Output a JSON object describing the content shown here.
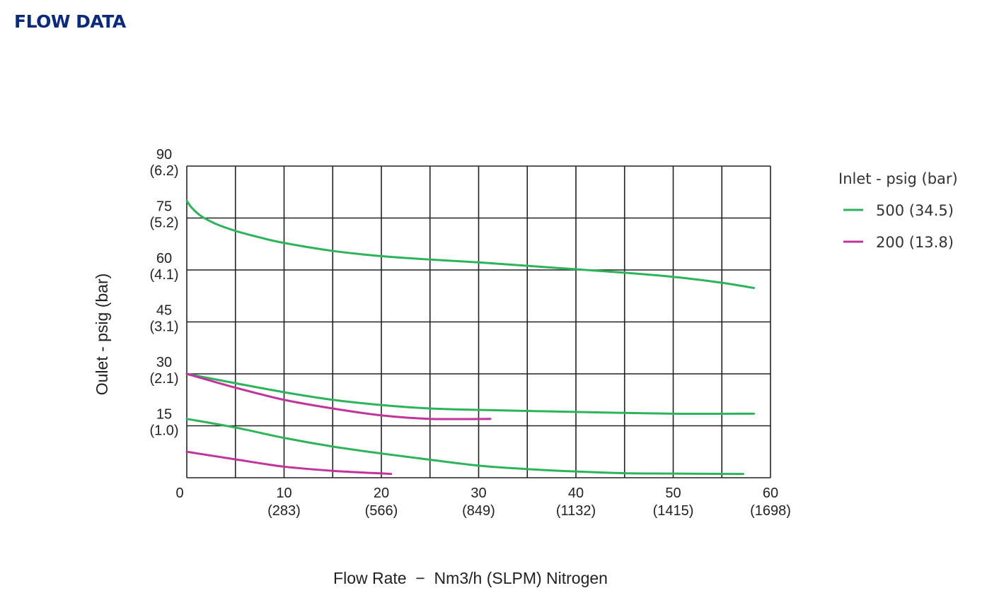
{
  "page": {
    "heading": "FLOW DATA",
    "heading_color": "#0b2a7a"
  },
  "chart_data": {
    "type": "line",
    "title": "FLOW DATA",
    "xlabel": "Flow Rate  −  Nm3/h (SLPM) Nitrogen",
    "ylabel": "Oulet - psig (bar)",
    "xlim": [
      0,
      60
    ],
    "ylim": [
      0,
      90
    ],
    "grid": true,
    "x_ticks": [
      {
        "value": 0,
        "label": "0",
        "sub": ""
      },
      {
        "value": 10,
        "label": "10",
        "sub": "(283)"
      },
      {
        "value": 20,
        "label": "20",
        "sub": "(566)"
      },
      {
        "value": 30,
        "label": "30",
        "sub": "(849)"
      },
      {
        "value": 40,
        "label": "40",
        "sub": "(1132)"
      },
      {
        "value": 50,
        "label": "50",
        "sub": "(1415)"
      },
      {
        "value": 60,
        "label": "60",
        "sub": "(1698)"
      }
    ],
    "y_ticks": [
      {
        "value": 15,
        "label": "15",
        "sub": "(1.0)"
      },
      {
        "value": 30,
        "label": "30",
        "sub": "(2.1)"
      },
      {
        "value": 45,
        "label": "45",
        "sub": "(3.1)"
      },
      {
        "value": 60,
        "label": "60",
        "sub": "(4.1)"
      },
      {
        "value": 75,
        "label": "75",
        "sub": "(5.2)"
      },
      {
        "value": 90,
        "label": "90",
        "sub": "(6.2)"
      }
    ],
    "legend": {
      "title": "Inlet - psig (bar)",
      "position": "right"
    },
    "series": [
      {
        "name": "500 (34.5)",
        "color": "#2db45a",
        "curves": [
          [
            [
              0,
              80
            ],
            [
              0.5,
              78
            ],
            [
              1.5,
              75.5
            ],
            [
              3,
              73.3
            ],
            [
              5,
              71.3
            ],
            [
              7.5,
              69.4
            ],
            [
              10,
              67.8
            ],
            [
              15,
              65.5
            ],
            [
              20,
              64
            ],
            [
              25,
              63
            ],
            [
              30,
              62.2
            ],
            [
              35,
              61.2
            ],
            [
              40,
              60.2
            ],
            [
              45,
              59.2
            ],
            [
              50,
              58
            ],
            [
              55,
              56.3
            ],
            [
              58.3,
              54.8
            ]
          ],
          [
            [
              0,
              30
            ],
            [
              5,
              27.3
            ],
            [
              10,
              24.7
            ],
            [
              15,
              22.5
            ],
            [
              20,
              21
            ],
            [
              25,
              20
            ],
            [
              30,
              19.6
            ],
            [
              40,
              19
            ],
            [
              50,
              18.5
            ],
            [
              58.3,
              18.5
            ]
          ],
          [
            [
              0,
              17
            ],
            [
              5,
              14.5
            ],
            [
              10,
              11.5
            ],
            [
              15,
              9
            ],
            [
              20,
              7
            ],
            [
              25,
              5.2
            ],
            [
              30,
              3.5
            ],
            [
              35,
              2.5
            ],
            [
              40,
              1.8
            ],
            [
              45,
              1.3
            ],
            [
              50,
              1.2
            ],
            [
              57.2,
              1.1
            ]
          ]
        ]
      },
      {
        "name": "200 (13.8)",
        "color": "#c0349b",
        "curves": [
          [
            [
              0,
              30
            ],
            [
              5,
              26
            ],
            [
              10,
              22.5
            ],
            [
              15,
              20
            ],
            [
              20,
              18
            ],
            [
              25,
              17
            ],
            [
              31.2,
              17
            ]
          ],
          [
            [
              0,
              7.5
            ],
            [
              5,
              5.3
            ],
            [
              10,
              3.2
            ],
            [
              15,
              2
            ],
            [
              21,
              1.1
            ]
          ]
        ]
      }
    ]
  }
}
